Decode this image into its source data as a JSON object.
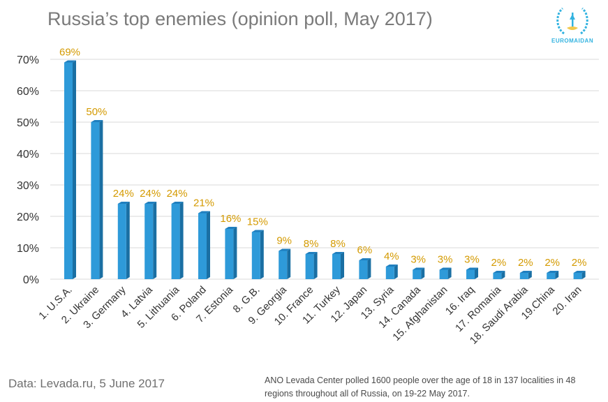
{
  "title": "Russia’s top enemies (opinion poll, May 2017)",
  "logo": {
    "text": "EUROMAIDAN"
  },
  "footer": {
    "source": "Data: Levada.ru, 5 June 2017",
    "note": "ANO Levada Center polled 1600 people over the age of 18 in 137 localities in 48 regions throughout all of Russia, on 19-22 May 2017."
  },
  "colors": {
    "bar_front": "#2e9ad9",
    "bar_side": "#1a6fa3",
    "bar_top": "#1f7fbf",
    "label": "#d49a00",
    "grid": "#d9d9d9"
  },
  "chart_data": {
    "type": "bar",
    "categories": [
      "1. U.S.A.",
      "2. Ukraine",
      "3. Germany",
      "4. Latvia",
      "5. Lithuania",
      "6. Poland",
      "7. Estonia",
      "8. G.B.",
      "9. Georgia",
      "10. France",
      "11. Turkey",
      "12. Japan",
      "13. Syria",
      "14. Canada",
      "15. Afghanistan",
      "16. Iraq",
      "17. Romania",
      "18. Saudi Arabia",
      "19.China",
      "20. Iran"
    ],
    "values": [
      69,
      50,
      24,
      24,
      24,
      21,
      16,
      15,
      9,
      8,
      8,
      6,
      4,
      3,
      3,
      3,
      2,
      2,
      2,
      2
    ],
    "data_labels": [
      "69%",
      "50%",
      "24%",
      "24%",
      "24%",
      "21%",
      "16%",
      "15%",
      "9%",
      "8%",
      "8%",
      "6%",
      "4%",
      "3%",
      "3%",
      "3%",
      "2%",
      "2%",
      "2%",
      "2%"
    ],
    "yticks": [
      "0%",
      "10%",
      "20%",
      "30%",
      "40%",
      "50%",
      "60%",
      "70%"
    ],
    "ylim": [
      0,
      70
    ],
    "xlabel": "",
    "ylabel": "",
    "grid": true,
    "legend": "none"
  }
}
